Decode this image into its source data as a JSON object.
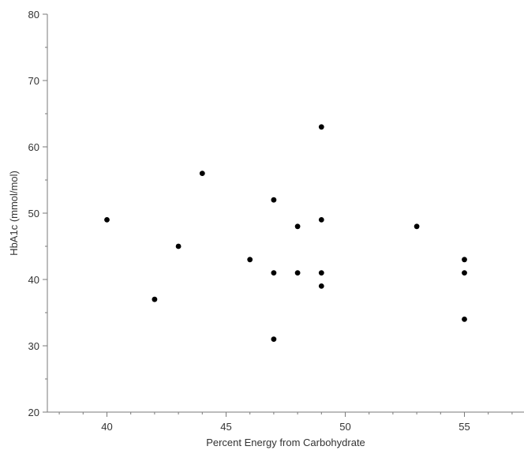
{
  "chart_data": {
    "type": "scatter",
    "title": "",
    "xlabel": "Percent Energy from Carbohydrate",
    "ylabel": "HbA1c (mmol/mol)",
    "xlim": [
      37.5,
      57.5
    ],
    "ylim": [
      20,
      80
    ],
    "x_ticks": [
      40,
      45,
      50,
      55
    ],
    "x_tick_labels": [
      "40",
      "45",
      "50",
      "55"
    ],
    "y_ticks": [
      20,
      30,
      40,
      50,
      60,
      70,
      80
    ],
    "y_tick_labels": [
      "20",
      "30",
      "40",
      "50",
      "60",
      "70",
      "80"
    ],
    "grid": false,
    "marker_color": "#000000",
    "points": [
      {
        "x": 40,
        "y": 49
      },
      {
        "x": 42,
        "y": 37
      },
      {
        "x": 43,
        "y": 45
      },
      {
        "x": 44,
        "y": 56
      },
      {
        "x": 46,
        "y": 43
      },
      {
        "x": 47,
        "y": 52
      },
      {
        "x": 47,
        "y": 41
      },
      {
        "x": 47,
        "y": 31
      },
      {
        "x": 48,
        "y": 48
      },
      {
        "x": 48,
        "y": 41
      },
      {
        "x": 49,
        "y": 63
      },
      {
        "x": 49,
        "y": 49
      },
      {
        "x": 49,
        "y": 41
      },
      {
        "x": 49,
        "y": 39
      },
      {
        "x": 53,
        "y": 48
      },
      {
        "x": 55,
        "y": 43
      },
      {
        "x": 55,
        "y": 41
      },
      {
        "x": 55,
        "y": 34
      }
    ]
  }
}
